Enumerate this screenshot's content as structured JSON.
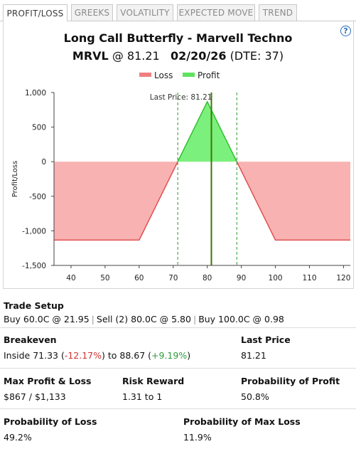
{
  "tabs": [
    {
      "label": "PROFIT/LOSS",
      "active": true
    },
    {
      "label": "GREEKS",
      "active": false
    },
    {
      "label": "VOLATILITY",
      "active": false
    },
    {
      "label": "EXPECTED MOVE",
      "active": false
    },
    {
      "label": "TREND",
      "active": false
    }
  ],
  "header": {
    "title": "Long Call Butterfly - Marvell Techno",
    "symbol": "MRVL",
    "at_price": "@ 81.21",
    "expiry": "02/20/26",
    "dte": "(DTE: 37)",
    "help_icon": "question-circle-icon"
  },
  "chart_data": {
    "type": "area",
    "legend": [
      {
        "name": "Loss",
        "color": "#f08080"
      },
      {
        "name": "Profit",
        "color": "#5ee35e"
      }
    ],
    "legend_placement": "top-center",
    "ylabel": "Profit/Loss",
    "xlim": [
      35,
      122
    ],
    "ylim": [
      -1500,
      1000
    ],
    "xticks": [
      40,
      50,
      60,
      70,
      80,
      90,
      100,
      110,
      120
    ],
    "yticks": [
      1000,
      500,
      0,
      -500,
      -1000,
      -1500
    ],
    "ytick_labels": [
      "1,000",
      "500",
      "0",
      "-500",
      "-1,000",
      "-1,500"
    ],
    "payoff": {
      "x": [
        35,
        60,
        71.33,
        80,
        88.67,
        100,
        122
      ],
      "y": [
        -1133,
        -1133,
        0,
        867,
        0,
        -1133,
        -1133
      ]
    },
    "last_price": 81.21,
    "last_price_label": "Last Price: 81.21",
    "breakevens": [
      71.33,
      88.67
    ],
    "colors": {
      "loss_fill": "#f8a5a5",
      "loss_line": "#e05050",
      "profit_fill": "#7cf07c",
      "profit_line": "#2fbf2f",
      "last_price_line": "#3a7a00",
      "breakeven_line": "#2a9a2a"
    }
  },
  "stats": {
    "trade_setup": {
      "label": "Trade Setup",
      "legs": [
        "Buy 60.0C @ 21.95",
        "Sell (2) 80.0C @ 5.80",
        "Buy 100.0C @ 0.98"
      ]
    },
    "breakeven": {
      "label": "Breakeven",
      "prefix": "Inside 71.33 (",
      "low_pct": "-12.17%",
      "middle": ") to 88.67 (",
      "high_pct": "+9.19%",
      "suffix": ")"
    },
    "last_price": {
      "label": "Last Price",
      "value": "81.21"
    },
    "max_profit_loss": {
      "label": "Max Profit & Loss",
      "value": "$867 / $1,133"
    },
    "risk_reward": {
      "label": "Risk Reward",
      "value": "1.31 to 1"
    },
    "prob_profit": {
      "label": "Probability of Profit",
      "value": "50.8%"
    },
    "prob_loss": {
      "label": "Probability of Loss",
      "value": "49.2%"
    },
    "prob_max_loss": {
      "label": "Probability of Max Loss",
      "value": "11.9%"
    }
  }
}
